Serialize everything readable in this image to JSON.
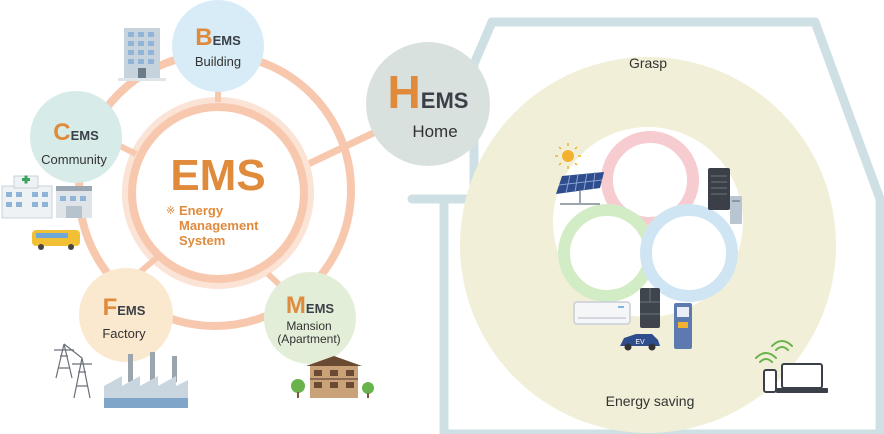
{
  "center": {
    "title": "EMS",
    "mark": "※",
    "subtitle_lines": [
      "Energy",
      "Management",
      "System"
    ]
  },
  "nodes": {
    "bems": {
      "initial": "B",
      "suffix": "EMS",
      "label": "Building",
      "color": "#d8ecf7"
    },
    "cems": {
      "initial": "C",
      "suffix": "EMS",
      "label": "Community",
      "color": "#d7ebe8"
    },
    "fems": {
      "initial": "F",
      "suffix": "EMS",
      "label": "Factory",
      "color": "#fbe9cf"
    },
    "mems": {
      "initial": "M",
      "suffix": "EMS",
      "label": "Mansion",
      "label2": "(Apartment)",
      "color": "#e3eed8"
    },
    "hems": {
      "initial": "H",
      "suffix": "EMS",
      "label": "Home",
      "color": "#d9e1de"
    }
  },
  "house": {
    "top_label": "Grasp",
    "bottom_label": "Energy saving",
    "ev_label": "EV"
  },
  "colors": {
    "accent_orange": "#e08a3c",
    "ring_peach": "#f8c8ae",
    "house_outline": "#cfe0e4",
    "house_inner": "#f1efd7",
    "text_dark": "#333333"
  },
  "icons": [
    "building-icon",
    "hospital-icon",
    "school-icon",
    "bus-icon",
    "power-tower-icon",
    "factory-icon",
    "apartment-icon",
    "tree-icon",
    "solar-panel-icon",
    "sun-icon",
    "storage-battery-icon",
    "air-conditioner-icon",
    "refrigerator-icon",
    "ev-charger-icon",
    "ev-car-icon",
    "wifi-icon",
    "smartphone-icon",
    "laptop-icon"
  ]
}
